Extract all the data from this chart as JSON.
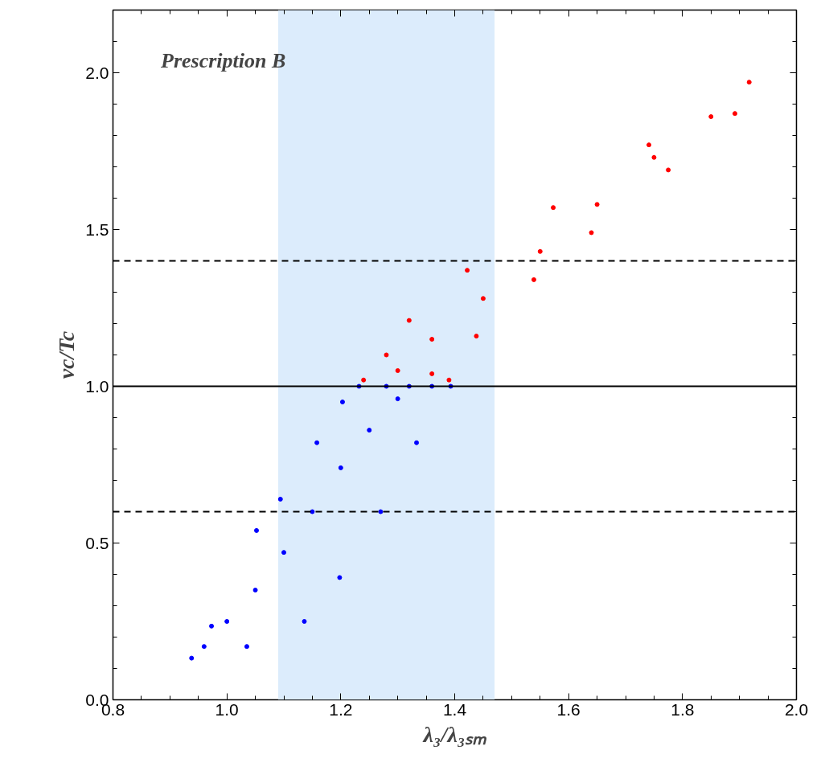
{
  "chart_data": {
    "type": "scatter",
    "xlabel": "λ₃/λ₃ₛₘ",
    "ylabel": "vc/Tc",
    "annotations": [
      "Prescription B"
    ],
    "marker": "circle",
    "grid": false,
    "xlim": [
      0.8,
      2.0
    ],
    "ylim": [
      0.0,
      2.2
    ],
    "xticks": [
      0.8,
      {
        "value": 0.85,
        "label": null
      },
      {
        "value": 0.9,
        "label": null
      },
      {
        "value": 0.95,
        "label": null
      },
      {
        "value": 1.0,
        "label": "1.0"
      },
      {
        "value": 1.05,
        "label": null
      },
      {
        "value": 1.1,
        "label": null
      },
      {
        "value": 1.15,
        "label": null
      },
      1.2,
      {
        "value": 1.25,
        "label": null
      },
      {
        "value": 1.3,
        "label": null
      },
      {
        "value": 1.35,
        "label": null
      },
      1.4,
      {
        "value": 1.45,
        "label": null
      },
      {
        "value": 1.5,
        "label": null
      },
      {
        "value": 1.55,
        "label": null
      },
      1.6,
      {
        "value": 1.65,
        "label": null
      },
      {
        "value": 1.7,
        "label": null
      },
      {
        "value": 1.75,
        "label": null
      },
      1.8,
      {
        "value": 1.85,
        "label": null
      },
      {
        "value": 1.9,
        "label": null
      },
      {
        "value": 1.95,
        "label": null
      },
      {
        "value": 2.0,
        "label": "2.0"
      }
    ],
    "yticks": [
      {
        "value": 0.0,
        "label": "0.0"
      },
      {
        "value": 0.1,
        "label": null
      },
      {
        "value": 0.2,
        "label": null
      },
      {
        "value": 0.3,
        "label": null
      },
      {
        "value": 0.4,
        "label": null
      },
      0.5,
      {
        "value": 0.6,
        "label": null
      },
      {
        "value": 0.7,
        "label": null
      },
      {
        "value": 0.8,
        "label": null
      },
      {
        "value": 0.9,
        "label": null
      },
      {
        "value": 1.0,
        "label": "1.0"
      },
      {
        "value": 1.1,
        "label": null
      },
      {
        "value": 1.2,
        "label": null
      },
      {
        "value": 1.3,
        "label": null
      },
      {
        "value": 1.4,
        "label": null
      },
      1.5,
      {
        "value": 1.6,
        "label": null
      },
      {
        "value": 1.7,
        "label": null
      },
      {
        "value": 1.8,
        "label": null
      },
      {
        "value": 1.9,
        "label": null
      },
      {
        "value": 2.0,
        "label": "2.0"
      },
      {
        "value": 2.1,
        "label": null
      }
    ],
    "bands": [
      {
        "axis": "x",
        "from": 1.09,
        "to": 1.47,
        "color": "#dcecfc"
      }
    ],
    "ref_lines": [
      {
        "axis": "y",
        "value": 1.4,
        "line_style": "dashed",
        "color": "#000000"
      },
      {
        "axis": "y",
        "value": 1.0,
        "line_style": "solid",
        "color": "#000000"
      },
      {
        "axis": "y",
        "value": 0.6,
        "line_style": "dashed",
        "color": "#000000"
      }
    ],
    "series": [
      {
        "color": "#0000ff",
        "x": [
          0.938,
          0.973,
          1.052,
          1.094,
          1.158,
          1.203,
          1.232,
          1.393,
          1.333,
          1.27,
          1.198,
          1.136,
          1.035,
          0.96,
          1.0,
          1.05,
          1.1,
          1.15,
          1.2,
          1.25,
          1.3,
          1.28,
          1.32,
          1.36
        ],
        "values": [
          0.133,
          0.235,
          0.54,
          0.64,
          0.82,
          0.95,
          1.0,
          1.0,
          0.82,
          0.6,
          0.39,
          0.25,
          0.17,
          0.17,
          0.25,
          0.35,
          0.47,
          0.6,
          0.74,
          0.86,
          0.96,
          1.0,
          1.0,
          1.0
        ]
      },
      {
        "color": "#ff0000",
        "x": [
          1.24,
          1.28,
          1.32,
          1.36,
          1.39,
          1.422,
          1.573,
          1.741,
          1.917,
          1.438,
          1.539,
          1.64,
          1.775,
          1.892,
          1.3,
          1.36,
          1.45,
          1.55,
          1.65,
          1.75,
          1.85
        ],
        "values": [
          1.02,
          1.1,
          1.21,
          1.04,
          1.02,
          1.37,
          1.57,
          1.77,
          1.97,
          1.16,
          1.34,
          1.49,
          1.69,
          1.87,
          1.05,
          1.15,
          1.28,
          1.43,
          1.58,
          1.73,
          1.86
        ]
      }
    ]
  }
}
